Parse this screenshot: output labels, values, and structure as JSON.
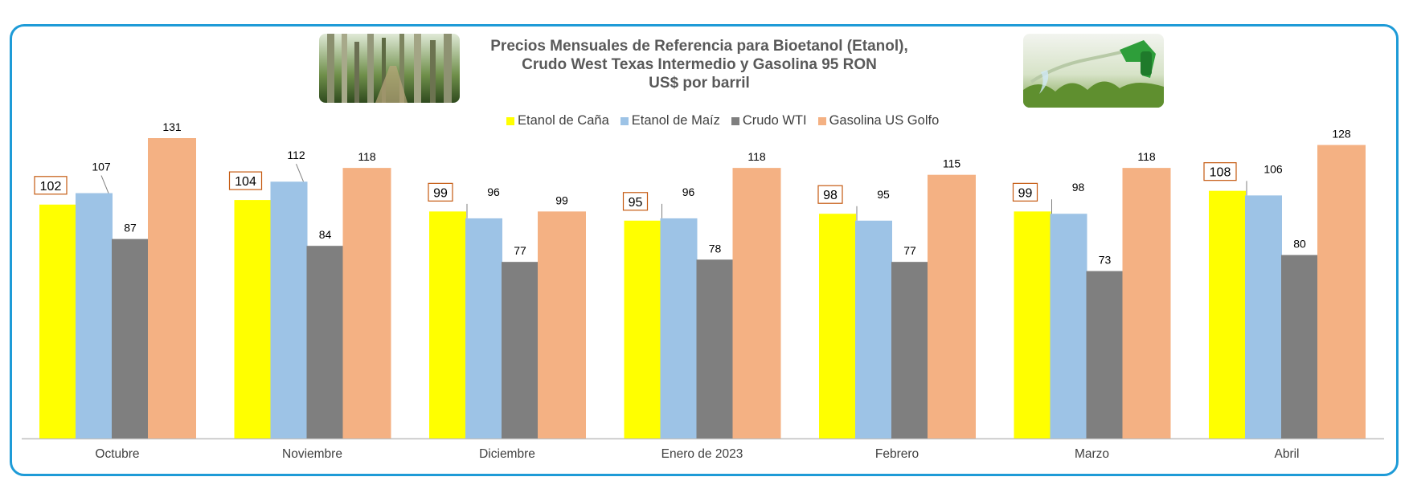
{
  "title_lines": [
    "Precios Mensuales de Referencia para Bioetanol (Etanol),",
    "Crudo West Texas Intermedio y Gasolina 95 RON",
    "US$ por barril"
  ],
  "colors": {
    "frame": "#1e9bd7",
    "etanol_cana": "#ffff00",
    "etanol_maiz": "#9dc3e6",
    "crudo_wti": "#7f7f7f",
    "gasolina": "#f4b183",
    "label_box": "#c55a11"
  },
  "images": {
    "left": "sugarcane-photo",
    "right": "fuel-nozzle-photo"
  },
  "chart_data": {
    "type": "bar",
    "title": "Precios Mensuales de Referencia para Bioetanol (Etanol), Crudo West Texas Intermedio y Gasolina 95 RON US$ por barril",
    "categories": [
      "Octubre",
      "Noviembre",
      "Diciembre",
      "Enero de 2023",
      "Febrero",
      "Marzo",
      "Abril"
    ],
    "series": [
      {
        "name": "Etanol de Caña",
        "values": [
          102,
          104,
          99,
          95,
          98,
          99,
          108
        ]
      },
      {
        "name": "Etanol de Maíz",
        "values": [
          107,
          112,
          96,
          96,
          95,
          98,
          106
        ]
      },
      {
        "name": "Crudo WTI",
        "values": [
          87,
          84,
          77,
          78,
          77,
          73,
          80
        ]
      },
      {
        "name": "Gasolina US Golfo",
        "values": [
          131,
          118,
          99,
          118,
          115,
          118,
          128
        ]
      }
    ],
    "ylim": [
      0,
      131
    ],
    "grid": false,
    "legend_position": "top-center",
    "xlabel": "",
    "ylabel": ""
  }
}
